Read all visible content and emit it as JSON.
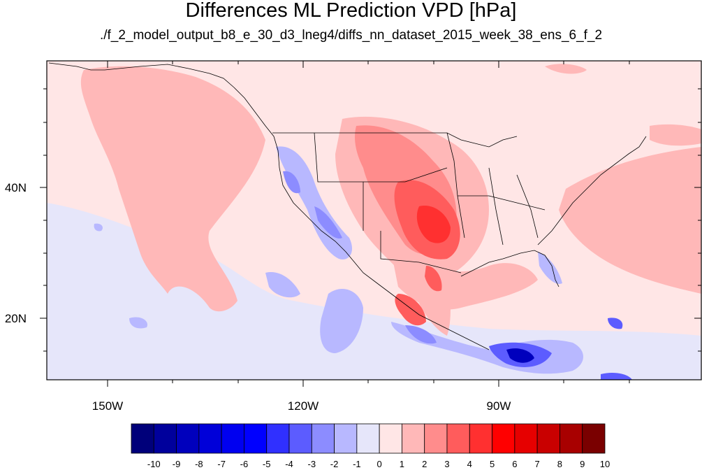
{
  "title": "Differences ML Prediction VPD [hPa]",
  "subtitle": "./f_2_model_output_b8_e_30_d3_lneg4/diffs_nn_dataset_2015_week_38_ens_6_f_2",
  "map": {
    "lon_ticks": [
      "150W",
      "120W",
      "90W"
    ],
    "lat_ticks": [
      "40N",
      "20N"
    ]
  },
  "colorbar": {
    "labels": [
      "-10",
      "-9",
      "-8",
      "-7",
      "-6",
      "-5",
      "-4",
      "-3",
      "-2",
      "-1",
      "0",
      "1",
      "2",
      "3",
      "4",
      "5",
      "6",
      "7",
      "8",
      "9",
      "10"
    ],
    "colors": [
      "#00007a",
      "#00009c",
      "#0000bd",
      "#0000d9",
      "#0000f0",
      "#0000ff",
      "#3030ff",
      "#5c5cff",
      "#8c8cff",
      "#b8b8ff",
      "#e6e6fa",
      "#ffe6e6",
      "#ffb8b8",
      "#ff8c8c",
      "#ff5c5c",
      "#ff3030",
      "#ff0000",
      "#e60000",
      "#c90000",
      "#a80000",
      "#7a0000"
    ]
  }
}
